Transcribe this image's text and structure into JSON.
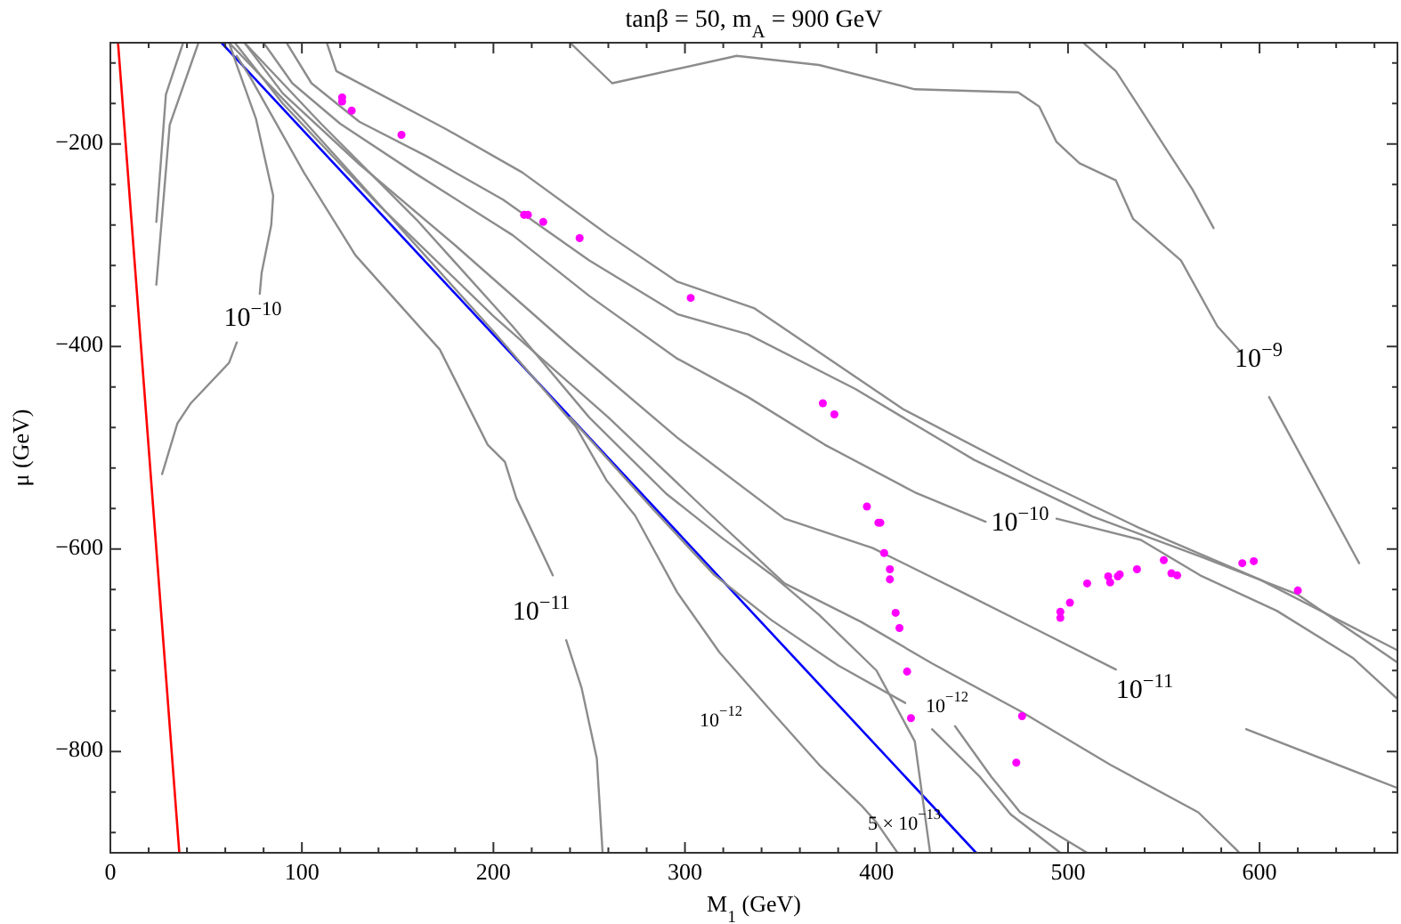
{
  "chart_data": {
    "type": "line",
    "title": "tanβ = 50, m$_{A}$ = 900 GeV",
    "xlabel": "M$_{1}$ (GeV)",
    "ylabel": "μ (GeV)",
    "xlim": [
      0,
      672
    ],
    "ylim": [
      -900,
      -100
    ],
    "xticks": [
      0,
      {
        "value": 20,
        "label": null
      },
      {
        "value": 40,
        "label": null
      },
      {
        "value": 60,
        "label": null
      },
      {
        "value": 80,
        "label": null
      },
      100,
      {
        "value": 120,
        "label": null
      },
      {
        "value": 140,
        "label": null
      },
      {
        "value": 160,
        "label": null
      },
      {
        "value": 180,
        "label": null
      },
      200,
      {
        "value": 220,
        "label": null
      },
      {
        "value": 240,
        "label": null
      },
      {
        "value": 260,
        "label": null
      },
      {
        "value": 280,
        "label": null
      },
      300,
      {
        "value": 320,
        "label": null
      },
      {
        "value": 340,
        "label": null
      },
      {
        "value": 360,
        "label": null
      },
      {
        "value": 380,
        "label": null
      },
      400,
      {
        "value": 420,
        "label": null
      },
      {
        "value": 440,
        "label": null
      },
      {
        "value": 460,
        "label": null
      },
      {
        "value": 480,
        "label": null
      },
      500,
      {
        "value": 520,
        "label": null
      },
      {
        "value": 540,
        "label": null
      },
      {
        "value": 560,
        "label": null
      },
      {
        "value": 580,
        "label": null
      },
      600,
      {
        "value": 620,
        "label": null
      },
      {
        "value": 640,
        "label": null
      },
      {
        "value": 660,
        "label": null
      }
    ],
    "yticks": [
      {
        "value": -880,
        "label": null
      },
      {
        "value": -840,
        "label": null
      },
      {
        "value": -800,
        "label": "−800"
      },
      {
        "value": -760,
        "label": null
      },
      {
        "value": -720,
        "label": null
      },
      {
        "value": -680,
        "label": null
      },
      {
        "value": -640,
        "label": null
      },
      {
        "value": -600,
        "label": "−600"
      },
      {
        "value": -560,
        "label": null
      },
      {
        "value": -520,
        "label": null
      },
      {
        "value": -480,
        "label": null
      },
      {
        "value": -440,
        "label": null
      },
      {
        "value": -400,
        "label": "−400"
      },
      {
        "value": -360,
        "label": null
      },
      {
        "value": -320,
        "label": null
      },
      {
        "value": -280,
        "label": null
      },
      {
        "value": -240,
        "label": null
      },
      {
        "value": -200,
        "label": "−200"
      },
      {
        "value": -160,
        "label": null
      },
      {
        "value": -120,
        "label": null
      }
    ],
    "grid": false,
    "series": [
      {
        "type": "line",
        "color": "#ff0000",
        "x": [
          4,
          36
        ],
        "values": [
          -100,
          -900
        ]
      },
      {
        "type": "line",
        "color": "#0000ff",
        "x": [
          58,
          452
        ],
        "values": [
          -100,
          -900
        ]
      },
      {
        "type": "line",
        "color": "#8c8c8c",
        "x": [
          24,
          29,
          38
        ],
        "values": [
          -277,
          -151,
          -100
        ]
      },
      {
        "type": "line",
        "color": "#8c8c8c",
        "x": [
          46,
          31,
          24
        ],
        "values": [
          -100,
          -181,
          -339
        ]
      },
      {
        "type": "line",
        "color": "#8c8c8c",
        "x": [
          62,
          66,
          76,
          85,
          84,
          79,
          78
        ],
        "values": [
          -100,
          -122,
          -175,
          -251,
          -280,
          -327,
          -348
        ]
      },
      {
        "type": "line",
        "color": "#8c8c8c",
        "x": [
          66,
          62,
          42,
          35,
          27
        ],
        "values": [
          -396,
          -416,
          -456,
          -476,
          -526
        ]
      },
      {
        "type": "line",
        "color": "#8c8c8c",
        "x": [
          66,
          73,
          101,
          128,
          172,
          197,
          206,
          212,
          231
        ],
        "values": [
          -113,
          -134,
          -228,
          -310,
          -403,
          -497,
          -514,
          -550,
          -626
        ]
      },
      {
        "type": "line",
        "color": "#8c8c8c",
        "x": [
          238,
          246,
          254,
          257
        ],
        "values": [
          -690,
          -737,
          -807,
          -900
        ]
      },
      {
        "type": "line",
        "color": "#8c8c8c",
        "x": [
          113,
          118,
          140,
          175,
          215,
          260,
          296,
          336,
          414,
          482,
          537,
          600,
          672
        ],
        "values": [
          -100,
          -128,
          -150,
          -185,
          -228,
          -290,
          -336,
          -362,
          -462,
          -529,
          -579,
          -630,
          -700
        ]
      },
      {
        "type": "line",
        "color": "#8c8c8c",
        "x": [
          92,
          105,
          130,
          165,
          205,
          250,
          296,
          333,
          389,
          451,
          513,
          570,
          620,
          672
        ],
        "values": [
          -100,
          -140,
          -178,
          -212,
          -255,
          -315,
          -368,
          -388,
          -442,
          -512,
          -568,
          -608,
          -645,
          -712
        ]
      },
      {
        "type": "line",
        "color": "#8c8c8c",
        "x": [
          80,
          95,
          120,
          160,
          210,
          250,
          296,
          333,
          373,
          420,
          457
        ],
        "values": [
          -100,
          -140,
          -180,
          -230,
          -290,
          -350,
          -412,
          -450,
          -497,
          -544,
          -573
        ]
      },
      {
        "type": "line",
        "color": "#8c8c8c",
        "x": [
          494,
          538,
          569,
          609,
          649,
          672
        ],
        "values": [
          -570,
          -591,
          -626,
          -661,
          -708,
          -748
        ]
      },
      {
        "type": "line",
        "color": "#8c8c8c",
        "x": [
          70,
          90,
          130,
          180,
          240,
          296,
          352,
          398,
          445,
          482,
          525
        ],
        "values": [
          -100,
          -150,
          -220,
          -300,
          -400,
          -490,
          -570,
          -599,
          -643,
          -678,
          -719
        ]
      },
      {
        "type": "line",
        "color": "#8c8c8c",
        "x": [
          593,
          672
        ],
        "values": [
          -778,
          -836
        ]
      },
      {
        "type": "line",
        "color": "#8c8c8c",
        "x": [
          65,
          90,
          140,
          200,
          260,
          310,
          352,
          392,
          429,
          475,
          522,
          568,
          589
        ],
        "values": [
          -100,
          -160,
          -260,
          -370,
          -470,
          -560,
          -634,
          -672,
          -713,
          -760,
          -813,
          -860,
          -899
        ]
      },
      {
        "type": "line",
        "color": "#8c8c8c",
        "x": [
          240,
          283,
          315,
          345,
          380,
          415
        ],
        "values": [
          -470,
          -560,
          -625,
          -670,
          -715,
          -752
        ]
      },
      {
        "type": "line",
        "color": "#8c8c8c",
        "x": [
          429,
          454,
          470,
          496
        ],
        "values": [
          -778,
          -825,
          -862,
          -900
        ]
      },
      {
        "type": "line",
        "color": "#8c8c8c",
        "x": [
          441,
          460,
          475,
          510
        ],
        "values": [
          -775,
          -825,
          -860,
          -900
        ]
      },
      {
        "type": "line",
        "color": "#8c8c8c",
        "x": [
          62,
          100,
          150,
          200,
          243,
          259,
          274,
          296,
          318,
          345,
          370,
          386,
          392,
          400,
          411
        ],
        "values": [
          -100,
          -175,
          -280,
          -385,
          -479,
          -532,
          -567,
          -643,
          -702,
          -760,
          -813,
          -842,
          -853,
          -870,
          -900
        ]
      },
      {
        "type": "line",
        "color": "#8c8c8c",
        "x": [
          70,
          110,
          160,
          210,
          250,
          290,
          320,
          345,
          370,
          400,
          420,
          428
        ],
        "values": [
          -100,
          -180,
          -275,
          -380,
          -470,
          -545,
          -590,
          -625,
          -665,
          -720,
          -790,
          -900
        ]
      },
      {
        "type": "line",
        "color": "#8c8c8c",
        "x": [
          240,
          262,
          327,
          370,
          420,
          474,
          485,
          494,
          506,
          525,
          534,
          559,
          578,
          590
        ],
        "values": [
          -100,
          -140,
          -113,
          -122,
          -146,
          -149,
          -163,
          -198,
          -219,
          -236,
          -274,
          -315,
          -380,
          -405
        ]
      },
      {
        "type": "line",
        "color": "#8c8c8c",
        "x": [
          605,
          652
        ],
        "values": [
          -450,
          -614
        ]
      },
      {
        "type": "line",
        "color": "#8c8c8c",
        "x": [
          508,
          525,
          537,
          553,
          565,
          576
        ],
        "values": [
          -100,
          -128,
          -163,
          -210,
          -245,
          -283
        ]
      },
      {
        "type": "scatter",
        "color": "#ff00ff",
        "marker": "circle",
        "x": [
          121,
          121,
          126,
          152,
          216,
          218,
          226,
          245,
          303,
          372,
          378,
          395,
          401,
          402,
          404,
          407,
          407,
          410,
          412,
          416,
          418,
          476,
          473,
          496,
          496,
          501,
          510,
          521,
          522,
          526,
          527,
          536,
          550,
          554,
          557,
          591,
          597,
          620
        ],
        "values": [
          -154,
          -158,
          -167,
          -191,
          -270,
          -270,
          -277,
          -293,
          -352,
          -456,
          -467,
          -558,
          -574,
          -574,
          -604,
          -620,
          -630,
          -663,
          -678,
          -721,
          -767,
          -765,
          -811,
          -662,
          -668,
          -653,
          -634,
          -627,
          -633,
          -627,
          -625,
          -620,
          -611,
          -624,
          -626,
          -614,
          -612,
          -641
        ]
      }
    ],
    "annotations": [
      "10$^{−10}$",
      "10$^{−11}$",
      "10$^{−12}$",
      "10$^{−12}$",
      "5 × 10$^{−13}$",
      "10$^{−10}$",
      "10$^{−11}$",
      "10$^{−9}$"
    ]
  }
}
